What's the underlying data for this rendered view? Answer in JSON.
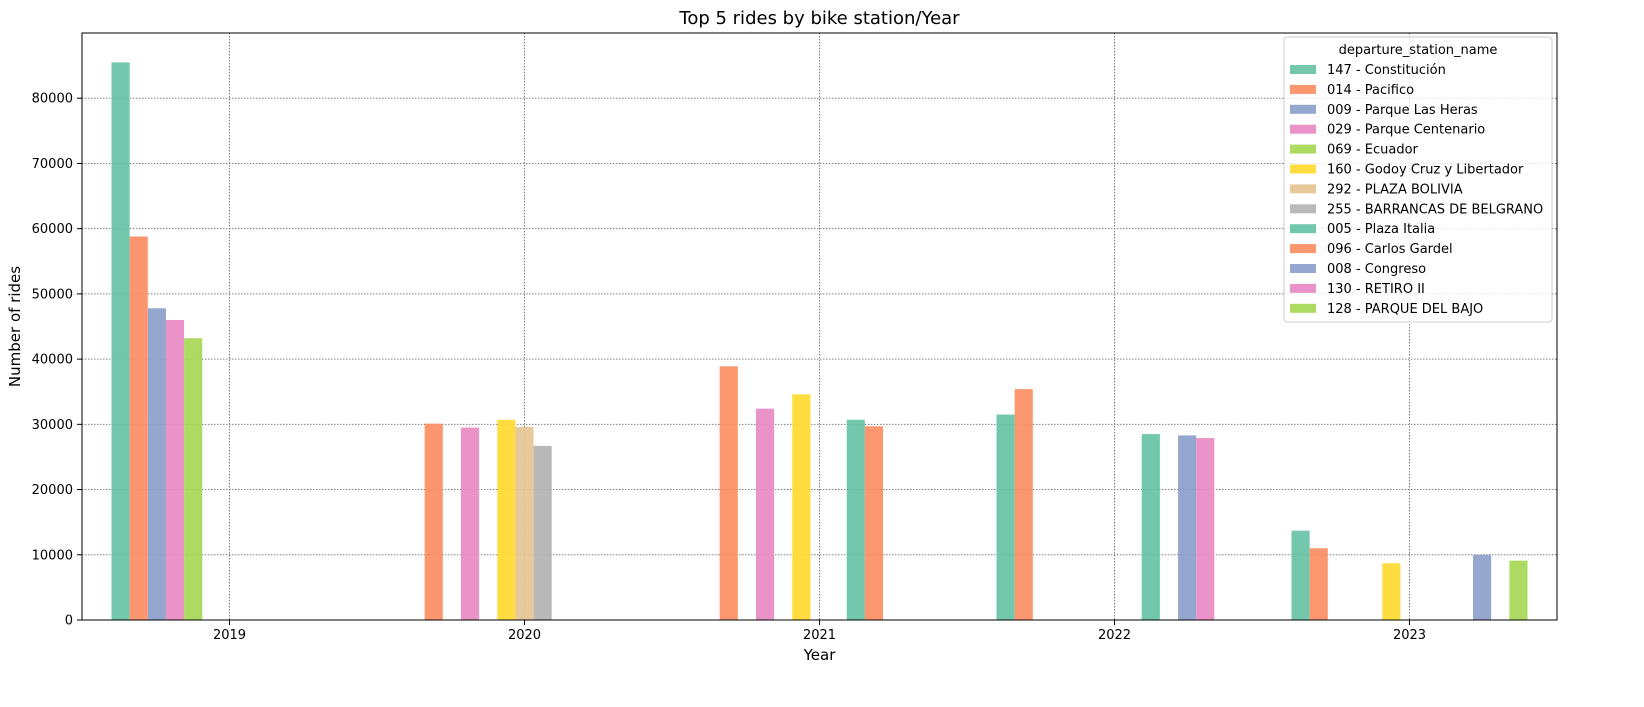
{
  "chart_data": {
    "type": "bar",
    "title": "Top 5 rides by bike station/Year",
    "xlabel": "Year",
    "ylabel": "Number of rides",
    "categories": [
      "2019",
      "2020",
      "2021",
      "2022",
      "2023"
    ],
    "ylim": [
      0,
      90000
    ],
    "yticks": [
      0,
      10000,
      20000,
      30000,
      40000,
      50000,
      60000,
      70000,
      80000
    ],
    "grid": true,
    "legend": {
      "title": "departure_station_name",
      "placement": "top-right"
    },
    "series": [
      {
        "name": "147 - Constitución",
        "color": "#66c2a5",
        "values": [
          85500,
          null,
          null,
          31500,
          13700
        ]
      },
      {
        "name": "014 - Pacifico",
        "color": "#fc8d62",
        "values": [
          58800,
          30100,
          38900,
          35400,
          11000
        ]
      },
      {
        "name": "009 - Parque Las Heras",
        "color": "#8da0cb",
        "values": [
          47800,
          null,
          null,
          null,
          null
        ]
      },
      {
        "name": "029 - Parque Centenario",
        "color": "#e78ac3",
        "values": [
          46000,
          29500,
          32400,
          null,
          null
        ]
      },
      {
        "name": "069 - Ecuador",
        "color": "#a6d854",
        "values": [
          43200,
          null,
          null,
          null,
          null
        ]
      },
      {
        "name": "160 - Godoy Cruz y Libertador",
        "color": "#ffd92f",
        "values": [
          null,
          30700,
          34600,
          null,
          8700
        ]
      },
      {
        "name": "292 - PLAZA BOLIVIA",
        "color": "#e5c494",
        "values": [
          null,
          29600,
          null,
          null,
          null
        ]
      },
      {
        "name": "255 - BARRANCAS DE BELGRANO",
        "color": "#b3b3b3",
        "values": [
          null,
          26700,
          null,
          null,
          null
        ]
      },
      {
        "name": "005 - Plaza Italia",
        "color": "#66c2a5",
        "values": [
          null,
          null,
          30700,
          28500,
          null
        ]
      },
      {
        "name": "096 - Carlos Gardel",
        "color": "#fc8d62",
        "values": [
          null,
          null,
          29700,
          null,
          null
        ]
      },
      {
        "name": "008 - Congreso",
        "color": "#8da0cb",
        "values": [
          null,
          null,
          null,
          28300,
          10000
        ]
      },
      {
        "name": "130 - RETIRO II",
        "color": "#e78ac3",
        "values": [
          null,
          null,
          null,
          27900,
          null
        ]
      },
      {
        "name": "128 - PARQUE DEL BAJO",
        "color": "#a6d854",
        "values": [
          null,
          null,
          null,
          null,
          9100
        ]
      }
    ]
  }
}
